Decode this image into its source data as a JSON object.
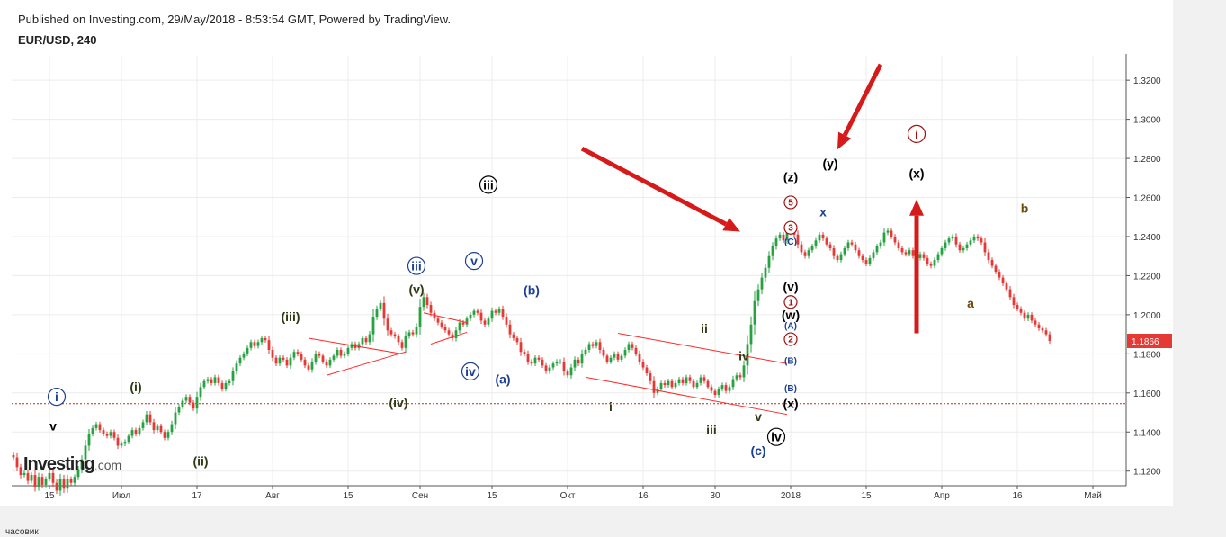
{
  "header": {
    "published": "Published on Investing.com, 29/May/2018 - 8:53:54 GMT, Powered by TradingView.",
    "symbol": "EUR/USD, 240"
  },
  "footer": {
    "note": "часовик"
  },
  "logo": {
    "main": "Investing",
    "suffix": "com"
  },
  "colors": {
    "up": "#26a241",
    "down": "#e53935",
    "trend_line": "#ff2a2a",
    "hline": "#c62828",
    "arrow": "#d61a1a",
    "price_badge": "#e53935",
    "navy": "#1c3f94",
    "dark_green": "#2e3b12",
    "olive": "#6b4a0a",
    "maroon": "#a01010"
  },
  "chart_data": {
    "type": "candlestick",
    "title": "EUR/USD, 240",
    "y_axis": {
      "ylim": [
        1.1125,
        1.3325
      ],
      "ticks": [
        "1.1200",
        "1.1400",
        "1.1600",
        "1.1800",
        "1.2000",
        "1.2200",
        "1.2400",
        "1.2600",
        "1.2800",
        "1.3000",
        "1.3200"
      ],
      "current_price": "1.1866"
    },
    "x_axis": {
      "ticks": [
        {
          "label": "15",
          "i": 10
        },
        {
          "label": "Июл",
          "i": 30
        },
        {
          "label": "17",
          "i": 51
        },
        {
          "label": "Авг",
          "i": 72
        },
        {
          "label": "15",
          "i": 93
        },
        {
          "label": "Сен",
          "i": 113
        },
        {
          "label": "15",
          "i": 133
        },
        {
          "label": "Окт",
          "i": 154
        },
        {
          "label": "16",
          "i": 175
        },
        {
          "label": "30",
          "i": 195
        },
        {
          "label": "2018",
          "i": 216
        },
        {
          "label": "15",
          "i": 237
        },
        {
          "label": "Апр",
          "i": 258
        },
        {
          "label": "16",
          "i": 279
        },
        {
          "label": "Май",
          "i": 300
        }
      ]
    },
    "series": [
      {
        "closes": [
          1.127,
          1.122,
          1.118,
          1.119,
          1.115,
          1.118,
          1.112,
          1.117,
          1.113,
          1.116,
          1.119,
          1.114,
          1.11,
          1.116,
          1.111,
          1.116,
          1.114,
          1.117,
          1.121,
          1.126,
          1.133,
          1.139,
          1.142,
          1.144,
          1.141,
          1.139,
          1.138,
          1.14,
          1.137,
          1.133,
          1.134,
          1.135,
          1.138,
          1.141,
          1.139,
          1.142,
          1.145,
          1.149,
          1.145,
          1.141,
          1.143,
          1.14,
          1.137,
          1.14,
          1.144,
          1.15,
          1.153,
          1.156,
          1.158,
          1.155,
          1.152,
          1.158,
          1.163,
          1.166,
          1.167,
          1.165,
          1.168,
          1.165,
          1.162,
          1.165,
          1.166,
          1.171,
          1.175,
          1.178,
          1.18,
          1.183,
          1.186,
          1.184,
          1.186,
          1.188,
          1.187,
          1.182,
          1.178,
          1.175,
          1.178,
          1.177,
          1.174,
          1.178,
          1.181,
          1.18,
          1.177,
          1.174,
          1.172,
          1.176,
          1.18,
          1.179,
          1.176,
          1.174,
          1.177,
          1.179,
          1.182,
          1.179,
          1.18,
          1.183,
          1.185,
          1.183,
          1.185,
          1.188,
          1.186,
          1.19,
          1.199,
          1.203,
          1.206,
          1.198,
          1.192,
          1.19,
          1.189,
          1.186,
          1.183,
          1.189,
          1.191,
          1.19,
          1.194,
          1.204,
          1.209,
          1.205,
          1.201,
          1.198,
          1.196,
          1.194,
          1.192,
          1.19,
          1.188,
          1.192,
          1.196,
          1.195,
          1.198,
          1.2,
          1.202,
          1.201,
          1.197,
          1.195,
          1.198,
          1.202,
          1.201,
          1.203,
          1.199,
          1.195,
          1.19,
          1.188,
          1.186,
          1.181,
          1.18,
          1.176,
          1.175,
          1.178,
          1.177,
          1.174,
          1.171,
          1.173,
          1.175,
          1.176,
          1.176,
          1.171,
          1.169,
          1.173,
          1.177,
          1.175,
          1.18,
          1.182,
          1.185,
          1.184,
          1.186,
          1.182,
          1.179,
          1.176,
          1.178,
          1.18,
          1.177,
          1.179,
          1.182,
          1.185,
          1.183,
          1.18,
          1.176,
          1.173,
          1.17,
          1.166,
          1.16,
          1.162,
          1.165,
          1.164,
          1.166,
          1.163,
          1.165,
          1.167,
          1.165,
          1.168,
          1.166,
          1.163,
          1.165,
          1.168,
          1.166,
          1.163,
          1.161,
          1.159,
          1.162,
          1.164,
          1.161,
          1.163,
          1.167,
          1.169,
          1.168,
          1.174,
          1.185,
          1.195,
          1.207,
          1.213,
          1.219,
          1.224,
          1.23,
          1.235,
          1.239,
          1.241,
          1.238,
          1.242,
          1.245,
          1.241,
          1.236,
          1.232,
          1.23,
          1.233,
          1.235,
          1.238,
          1.241,
          1.239,
          1.236,
          1.234,
          1.23,
          1.228,
          1.231,
          1.234,
          1.237,
          1.236,
          1.233,
          1.23,
          1.228,
          1.226,
          1.229,
          1.232,
          1.235,
          1.237,
          1.242,
          1.243,
          1.24,
          1.237,
          1.234,
          1.232,
          1.231,
          1.233,
          1.23,
          1.229,
          1.231,
          1.229,
          1.226,
          1.225,
          1.228,
          1.231,
          1.234,
          1.237,
          1.239,
          1.24,
          1.236,
          1.233,
          1.234,
          1.236,
          1.238,
          1.24,
          1.239,
          1.237,
          1.232,
          1.228,
          1.225,
          1.222,
          1.219,
          1.216,
          1.213,
          1.209,
          1.205,
          1.203,
          1.201,
          1.198,
          1.2,
          1.197,
          1.195,
          1.193,
          1.192,
          1.19,
          1.1866
        ]
      }
    ],
    "horizontal_line": {
      "value": 1.1545,
      "style": "dotted"
    },
    "trend_lines": [
      {
        "from": {
          "i": 82,
          "v": 1.188
        },
        "to": {
          "i": 108,
          "v": 1.18
        }
      },
      {
        "from": {
          "i": 87,
          "v": 1.169
        },
        "to": {
          "i": 109,
          "v": 1.181
        }
      },
      {
        "from": {
          "i": 114,
          "v": 1.201
        },
        "to": {
          "i": 126,
          "v": 1.196
        }
      },
      {
        "from": {
          "i": 116,
          "v": 1.185
        },
        "to": {
          "i": 126,
          "v": 1.191
        }
      },
      {
        "from": {
          "i": 168,
          "v": 1.1905
        },
        "to": {
          "i": 215,
          "v": 1.175
        }
      },
      {
        "from": {
          "i": 159,
          "v": 1.168
        },
        "to": {
          "i": 215,
          "v": 1.149
        }
      }
    ],
    "arrows": [
      {
        "from": {
          "i": 158,
          "v": 1.285
        },
        "to": {
          "i": 202,
          "v": 1.2425
        }
      },
      {
        "from": {
          "i": 241,
          "v": 1.328
        },
        "to": {
          "i": 229,
          "v": 1.2845
        }
      },
      {
        "from": {
          "i": 251,
          "v": 1.1905
        },
        "to": {
          "i": 251,
          "v": 1.259
        }
      }
    ],
    "wave_labels": [
      {
        "text": "i",
        "i": 12,
        "v": 1.158,
        "circle": true,
        "color": "navy"
      },
      {
        "text": "v",
        "i": 11,
        "v": 1.143,
        "color": "black"
      },
      {
        "text": "(i)",
        "i": 34,
        "v": 1.163,
        "color": "dark_green"
      },
      {
        "text": "(ii)",
        "i": 52,
        "v": 1.125,
        "color": "dark_green"
      },
      {
        "text": "(iii)",
        "i": 77,
        "v": 1.199,
        "color": "dark_green"
      },
      {
        "text": "(iv)",
        "i": 107,
        "v": 1.155,
        "color": "dark_green"
      },
      {
        "text": "(v)",
        "i": 112,
        "v": 1.213,
        "color": "dark_green"
      },
      {
        "text": "iii",
        "i": 112,
        "v": 1.225,
        "circle": true,
        "color": "navy"
      },
      {
        "text": "iii",
        "i": 132,
        "v": 1.2665,
        "circle": true,
        "color": "black"
      },
      {
        "text": "v",
        "i": 128,
        "v": 1.2275,
        "circle": true,
        "color": "navy"
      },
      {
        "text": "iv",
        "i": 127,
        "v": 1.171,
        "circle": true,
        "color": "navy"
      },
      {
        "text": "(a)",
        "i": 136,
        "v": 1.167,
        "color": "navy"
      },
      {
        "text": "(b)",
        "i": 144,
        "v": 1.2125,
        "color": "navy"
      },
      {
        "text": "i",
        "i": 166,
        "v": 1.153,
        "color": "dark_green"
      },
      {
        "text": "ii",
        "i": 192,
        "v": 1.193,
        "color": "dark_green"
      },
      {
        "text": "iii",
        "i": 194,
        "v": 1.141,
        "color": "dark_green"
      },
      {
        "text": "iv",
        "i": 203,
        "v": 1.179,
        "color": "dark_green"
      },
      {
        "text": "v",
        "i": 207,
        "v": 1.148,
        "color": "dark_green"
      },
      {
        "text": "(c)",
        "i": 207,
        "v": 1.1305,
        "color": "navy"
      },
      {
        "text": "iv",
        "i": 212,
        "v": 1.1375,
        "circle": true,
        "color": "black"
      },
      {
        "text": "(x)",
        "i": 216,
        "v": 1.1545,
        "color": "black"
      },
      {
        "text": "(B)",
        "i": 216,
        "v": 1.1625,
        "color": "navy",
        "small": true
      },
      {
        "text": "(B)",
        "i": 216,
        "v": 1.1765,
        "color": "navy",
        "small": true
      },
      {
        "text": "2",
        "i": 216,
        "v": 1.1875,
        "circle": true,
        "color": "maroon",
        "small": true
      },
      {
        "text": "(A)",
        "i": 216,
        "v": 1.1945,
        "color": "navy",
        "small": true
      },
      {
        "text": "(w)",
        "i": 216,
        "v": 1.2,
        "color": "black"
      },
      {
        "text": "1",
        "i": 216,
        "v": 1.2065,
        "circle": true,
        "color": "maroon",
        "small": true
      },
      {
        "text": "(v)",
        "i": 216,
        "v": 1.2145,
        "color": "black"
      },
      {
        "text": "(C)",
        "i": 216,
        "v": 1.2375,
        "color": "navy",
        "small": true
      },
      {
        "text": "3",
        "i": 216,
        "v": 1.2445,
        "circle": true,
        "color": "maroon",
        "small": true
      },
      {
        "text": "5",
        "i": 216,
        "v": 1.2575,
        "circle": true,
        "color": "maroon",
        "small": true
      },
      {
        "text": "(z)",
        "i": 216,
        "v": 1.2705,
        "color": "black"
      },
      {
        "text": "x",
        "i": 225,
        "v": 1.2525,
        "color": "navy"
      },
      {
        "text": "(y)",
        "i": 227,
        "v": 1.2775,
        "color": "black"
      },
      {
        "text": "(x)",
        "i": 251,
        "v": 1.2725,
        "color": "black"
      },
      {
        "text": "i",
        "i": 251,
        "v": 1.2925,
        "circle": true,
        "color": "maroon"
      },
      {
        "text": "b",
        "i": 281,
        "v": 1.2545,
        "color": "olive"
      },
      {
        "text": "a",
        "i": 266,
        "v": 1.206,
        "color": "olive"
      }
    ]
  }
}
